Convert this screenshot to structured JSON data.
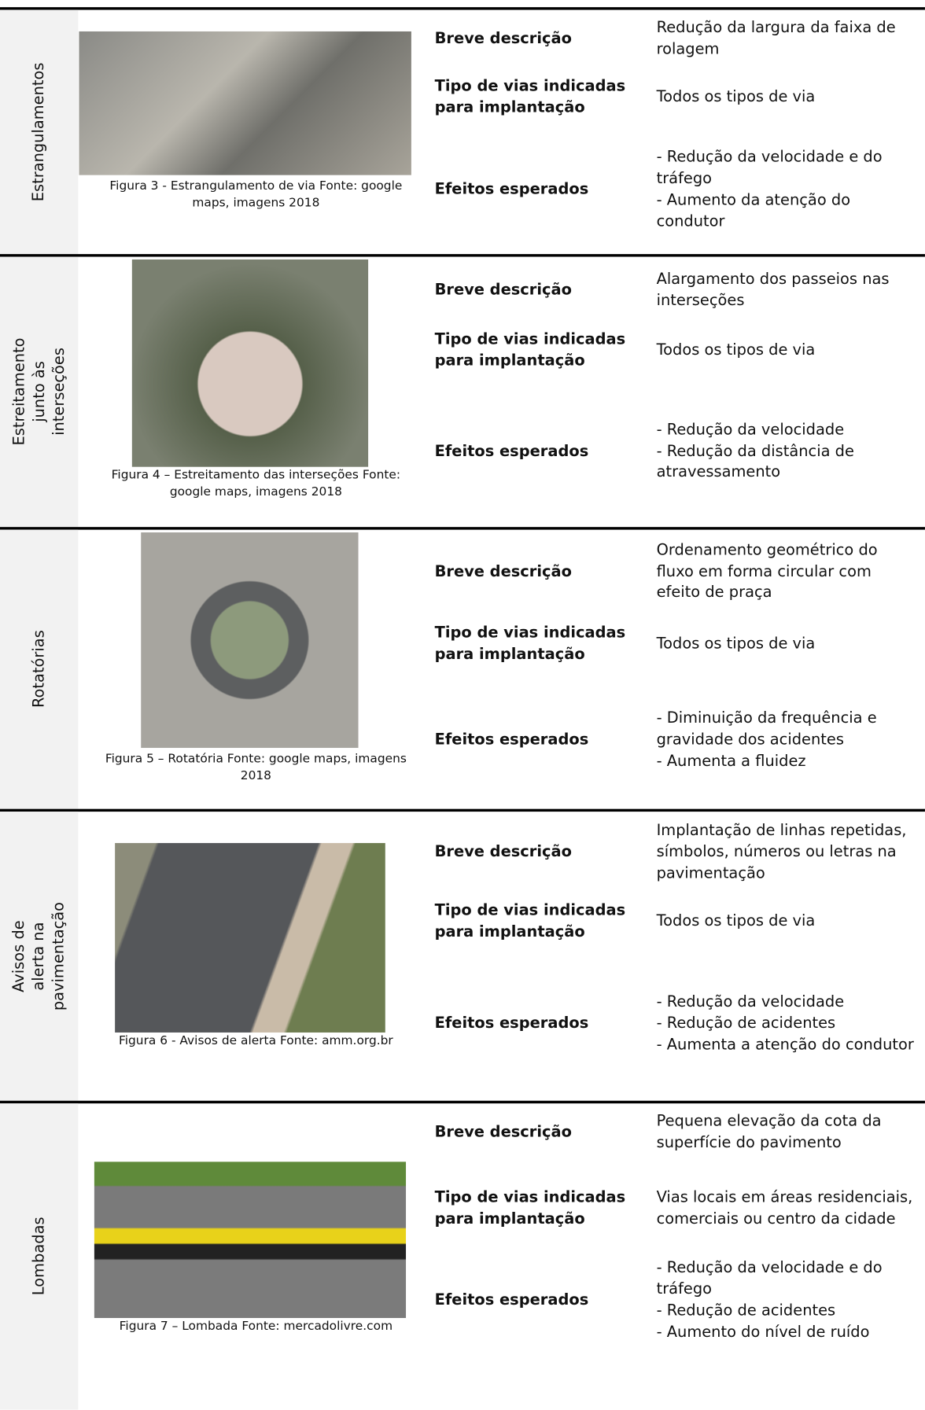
{
  "field_labels": {
    "description": "Breve descrição",
    "roads": "Tipo de vias indicadas para implantação",
    "effects": "Efeitos esperados"
  },
  "rows": [
    {
      "measure": "Estrangulamentos",
      "caption": "Figura 3 - Estrangulamento de via Fonte: google maps, imagens 2018",
      "description": "Redução da largura da faixa de rolagem",
      "roads": "Todos os tipos de via",
      "effects": [
        "- Redução da velocidade e do tráfego",
        "- Aumento da atenção do condutor"
      ]
    },
    {
      "measure": "Estreitamento junto às interseções",
      "caption": "Figura 4 – Estreitamento das interseções Fonte: google maps, imagens 2018",
      "description": "Alargamento dos passeios nas interseções",
      "roads": "Todos os tipos de via",
      "effects": [
        "- Redução da velocidade",
        "- Redução da distância de atravessamento"
      ]
    },
    {
      "measure": "Rotatórias",
      "caption": "Figura 5 – Rotatória Fonte: google maps, imagens 2018",
      "description": "Ordenamento geométrico do fluxo em forma circular com efeito de praça",
      "roads": "Todos os tipos de via",
      "effects": [
        "- Diminuição da frequência e gravidade dos acidentes",
        "- Aumenta a fluidez"
      ]
    },
    {
      "measure": "Avisos de alerta na pavimentação",
      "caption": "Figura 6 - Avisos de alerta Fonte: amm.org.br",
      "description": "Implantação de linhas repetidas, símbolos, números ou letras na pavimentação",
      "roads": "Todos os tipos de via",
      "effects": [
        "- Redução da velocidade",
        "- Redução de acidentes",
        "- Aumenta a atenção do condutor"
      ]
    },
    {
      "measure": "Lombadas",
      "caption": "Figura 7 – Lombada Fonte: mercadolivre.com",
      "description": "Pequena elevação da cota da superfície do pavimento",
      "roads": "Vias locais em áreas residenciais, comerciais ou centro da cidade",
      "effects": [
        "- Redução da velocidade e do tráfego",
        "- Redução de acidentes",
        "- Aumento do nível de ruído"
      ]
    }
  ]
}
